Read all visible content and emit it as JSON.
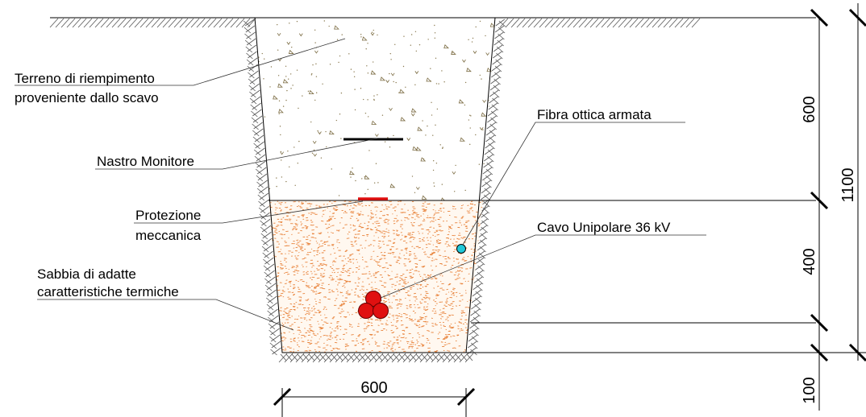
{
  "labels": {
    "fill_soil_line1": "Terreno di riempimento",
    "fill_soil_line2": "proveniente dallo scavo",
    "warning_tape": "Nastro Monitore",
    "protection_line1": "Protezione",
    "protection_line2": "meccanica",
    "sand_line1": "Sabbia di adatte",
    "sand_line2": "caratteristiche termiche",
    "fiber": "Fibra ottica armata",
    "cable": "Cavo Unipolare 36 kV"
  },
  "dimensions": {
    "width_bottom": "600",
    "height_fill": "600",
    "height_sand": "400",
    "height_total": "1100",
    "height_bed": "100"
  },
  "colors": {
    "sand": "#e8823a",
    "cable": "#e01010",
    "fiber": "#20c8d8",
    "protection": "#e01010",
    "tape": "#000000",
    "hatch": "#555555"
  }
}
